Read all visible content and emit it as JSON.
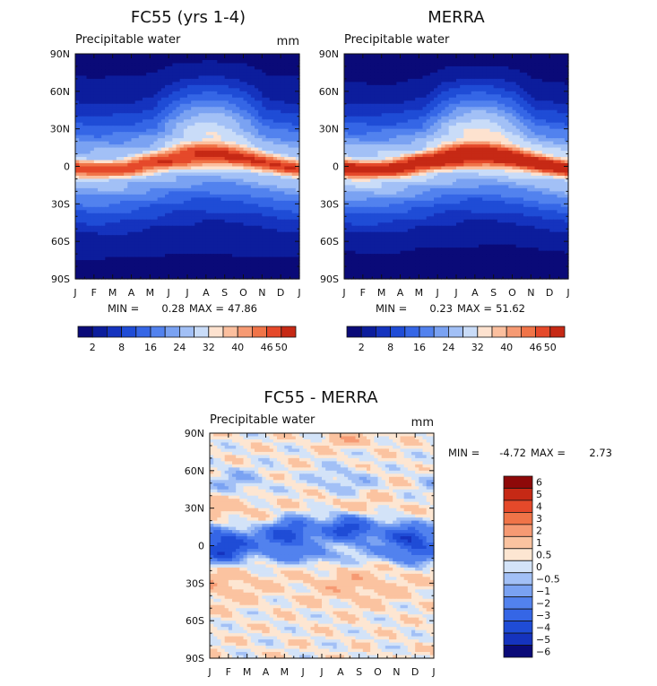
{
  "chart_data": [
    {
      "type": "heatmap",
      "title": "FC55 (yrs 1-4)",
      "subtitle": "Precipitable water",
      "units": "mm",
      "x_ticks": [
        "J",
        "F",
        "M",
        "A",
        "M",
        "J",
        "J",
        "A",
        "S",
        "O",
        "N",
        "D",
        "J"
      ],
      "y_ticks": [
        "90N",
        "60N",
        "30N",
        "0",
        "30S",
        "60S",
        "90S"
      ],
      "ylim": [
        -90,
        90
      ],
      "min_label": "MIN =",
      "min_value": "0.28",
      "max_label": "MAX =",
      "max_value": "47.86",
      "colorbar": {
        "orientation": "horizontal",
        "levels": [
          2,
          5,
          8,
          12,
          16,
          20,
          24,
          28,
          32,
          36,
          40,
          43,
          46,
          50
        ],
        "tick_labels": [
          "2",
          "8",
          "16",
          "24",
          "32",
          "40",
          "46",
          "50"
        ]
      },
      "field": {
        "equator_peak_mm": 44,
        "polar_min_mm": 1,
        "itcz_lat_range": [
          -5,
          10
        ],
        "peak_month": "Aug"
      }
    },
    {
      "type": "heatmap",
      "title": "MERRA",
      "subtitle": "Precipitable water",
      "units": "",
      "x_ticks": [
        "J",
        "F",
        "M",
        "A",
        "M",
        "J",
        "J",
        "A",
        "S",
        "O",
        "N",
        "D",
        "J"
      ],
      "y_ticks": [
        "90N",
        "60N",
        "30N",
        "0",
        "30S",
        "60S",
        "90S"
      ],
      "ylim": [
        -90,
        90
      ],
      "min_label": "MIN =",
      "min_value": "0.23",
      "max_label": "MAX =",
      "max_value": "51.62",
      "colorbar": {
        "orientation": "horizontal",
        "levels": [
          2,
          5,
          8,
          12,
          16,
          20,
          24,
          28,
          32,
          36,
          40,
          43,
          46,
          50
        ],
        "tick_labels": [
          "2",
          "8",
          "16",
          "24",
          "32",
          "40",
          "46",
          "50"
        ]
      },
      "field": {
        "equator_peak_mm": 50,
        "polar_min_mm": 0.5,
        "itcz_lat_range": [
          -5,
          10
        ],
        "peak_month": "Aug"
      }
    },
    {
      "type": "heatmap",
      "title": "FC55 - MERRA",
      "subtitle": "Precipitable water",
      "units": "mm",
      "x_ticks": [
        "J",
        "F",
        "M",
        "A",
        "M",
        "J",
        "J",
        "A",
        "S",
        "O",
        "N",
        "D",
        "J"
      ],
      "y_ticks": [
        "90N",
        "60N",
        "30N",
        "0",
        "30S",
        "60S",
        "90S"
      ],
      "ylim": [
        -90,
        90
      ],
      "min_label": "MIN =",
      "min_value": "-4.72",
      "max_label": "MAX =",
      "max_value": "2.73",
      "colorbar": {
        "orientation": "vertical",
        "levels": [
          6,
          5,
          4,
          3,
          2,
          1,
          0.5,
          0,
          -0.5,
          -1,
          -2,
          -3,
          -4,
          -5,
          -6
        ],
        "tick_labels": [
          "6",
          "5",
          "4",
          "3",
          "2",
          "1",
          "0.5",
          "0",
          "-0.5",
          "-1",
          "-2",
          "-3",
          "-4",
          "-5",
          "-6"
        ]
      },
      "field": {
        "tropical_bias_mm": -4,
        "subtropical_bias_mm": 0.7,
        "polar_north_bias_mm": 1.2
      }
    }
  ],
  "palette": {
    "seq": [
      "#0a0a78",
      "#0c1d9c",
      "#1533be",
      "#1f4cd6",
      "#3566e6",
      "#5282ee",
      "#7aa2f2",
      "#a2c0f6",
      "#c9dcf8",
      "#fde2cf",
      "#fbbf9e",
      "#f69a73",
      "#f07448",
      "#e5492a",
      "#c62915",
      "#8e0909"
    ],
    "div": [
      "#0a0a78",
      "#1533be",
      "#1f4cd6",
      "#3566e6",
      "#5282ee",
      "#7aa2f2",
      "#a2c0f6",
      "#d3e3f8",
      "#fde6d2",
      "#fbc3a0",
      "#f69a73",
      "#f07448",
      "#e5492a",
      "#c62915",
      "#8e0909"
    ]
  }
}
